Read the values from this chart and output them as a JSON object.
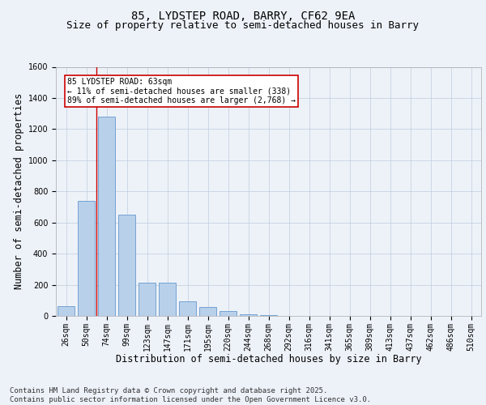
{
  "title1": "85, LYDSTEP ROAD, BARRY, CF62 9EA",
  "title2": "Size of property relative to semi-detached houses in Barry",
  "xlabel": "Distribution of semi-detached houses by size in Barry",
  "ylabel": "Number of semi-detached properties",
  "categories": [
    "26sqm",
    "50sqm",
    "74sqm",
    "99sqm",
    "123sqm",
    "147sqm",
    "171sqm",
    "195sqm",
    "220sqm",
    "244sqm",
    "268sqm",
    "292sqm",
    "316sqm",
    "341sqm",
    "365sqm",
    "389sqm",
    "413sqm",
    "437sqm",
    "462sqm",
    "486sqm",
    "510sqm"
  ],
  "values": [
    60,
    740,
    1280,
    650,
    215,
    215,
    95,
    55,
    30,
    10,
    5,
    0,
    0,
    0,
    0,
    0,
    0,
    0,
    0,
    0,
    0
  ],
  "bar_color": "#b8d0ea",
  "bar_edge_color": "#6699cc",
  "vline_x": 1.5,
  "vline_color": "#cc0000",
  "annotation_text": "85 LYDSTEP ROAD: 63sqm\n← 11% of semi-detached houses are smaller (338)\n89% of semi-detached houses are larger (2,768) →",
  "annotation_box_color": "#ffffff",
  "annotation_box_edge_color": "#cc0000",
  "ylim": [
    0,
    1600
  ],
  "yticks": [
    0,
    200,
    400,
    600,
    800,
    1000,
    1200,
    1400,
    1600
  ],
  "background_color": "#edf2f9",
  "footer_text": "Contains HM Land Registry data © Crown copyright and database right 2025.\nContains public sector information licensed under the Open Government Licence v3.0.",
  "title_fontsize": 10,
  "subtitle_fontsize": 9,
  "axis_label_fontsize": 8.5,
  "tick_fontsize": 7,
  "footer_fontsize": 6.5
}
